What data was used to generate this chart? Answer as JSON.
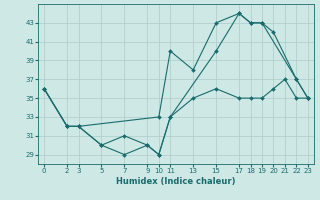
{
  "xlabel": "Humidex (Indice chaleur)",
  "bg_color": "#cde8e5",
  "line_color": "#1a6b6b",
  "grid_color": "#b0d0ce",
  "xlim": [
    -0.5,
    23.5
  ],
  "ylim": [
    28,
    45
  ],
  "xtick_positions": [
    0,
    2,
    3,
    5,
    7,
    9,
    10,
    11,
    13,
    15,
    17,
    18,
    19,
    20,
    21,
    22,
    23
  ],
  "xtick_labels": [
    "0",
    "2",
    "3",
    "5",
    "7",
    "9",
    "1011",
    "",
    "13",
    "15",
    "1718",
    "",
    "1920",
    "",
    "2122",
    "",
    "23"
  ],
  "yticks": [
    29,
    31,
    33,
    35,
    37,
    39,
    41,
    43
  ],
  "lines": [
    {
      "x": [
        0,
        2,
        3,
        10,
        11,
        13,
        15,
        17,
        18,
        19,
        22,
        23
      ],
      "y": [
        36,
        32,
        32,
        33,
        40,
        38,
        43,
        44,
        43,
        43,
        37,
        35
      ]
    },
    {
      "x": [
        0,
        2,
        3,
        5,
        7,
        9,
        10,
        11,
        15,
        17,
        18,
        19,
        20,
        22,
        23
      ],
      "y": [
        36,
        32,
        32,
        30,
        31,
        30,
        29,
        33,
        40,
        44,
        43,
        43,
        42,
        37,
        35
      ]
    },
    {
      "x": [
        0,
        2,
        3,
        5,
        7,
        9,
        10,
        11,
        13,
        15,
        17,
        18,
        19,
        20,
        21,
        22,
        23
      ],
      "y": [
        36,
        32,
        32,
        30,
        29,
        30,
        29,
        33,
        35,
        36,
        35,
        35,
        35,
        36,
        37,
        35,
        35
      ]
    }
  ]
}
